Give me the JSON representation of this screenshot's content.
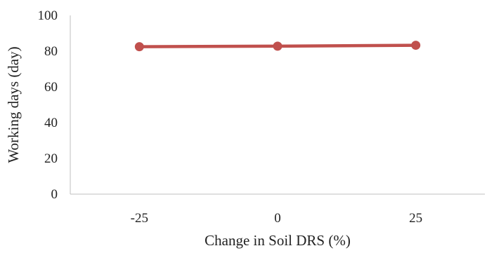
{
  "chart_data": {
    "type": "line",
    "title": "",
    "xlabel": "Change in Soil DRS (%)",
    "ylabel": "Working days  (day)",
    "categories": [
      "-25",
      "0",
      "25"
    ],
    "series": [
      {
        "values": [
          82.5,
          82.8,
          83.3
        ],
        "color": "#c0504d"
      }
    ],
    "ylim": [
      0,
      100
    ],
    "yticks": [
      "0",
      "20",
      "40",
      "60",
      "80",
      "100"
    ],
    "grid": false,
    "legend": "none"
  }
}
